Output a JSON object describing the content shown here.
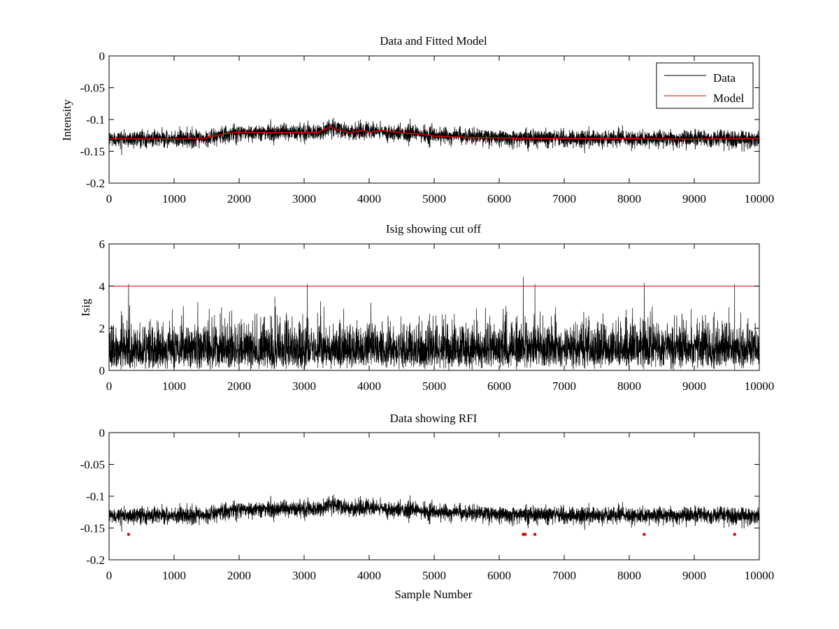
{
  "figure": {
    "background": "#ffffff"
  },
  "chart_data": [
    {
      "type": "line",
      "title": "Data and Fitted Model",
      "xlabel": "",
      "ylabel": "Intensity",
      "xlim": [
        0,
        10000
      ],
      "ylim": [
        -0.2,
        0
      ],
      "xticks": [
        0,
        1000,
        2000,
        3000,
        4000,
        5000,
        6000,
        7000,
        8000,
        9000,
        10000
      ],
      "xtick_labels": [
        "0",
        "1000",
        "2000",
        "3000",
        "4000",
        "5000",
        "6000",
        "7000",
        "8000",
        "9000",
        "10000"
      ],
      "yticks": [
        0,
        -0.05,
        -0.1,
        -0.15,
        -0.2
      ],
      "ytick_labels": [
        "0",
        "-0.05",
        "-0.1",
        "-0.15",
        "-0.2"
      ],
      "legend": {
        "position": "top-right",
        "entries": [
          "Data",
          "Model"
        ]
      },
      "series": [
        {
          "name": "Data",
          "color": "#000000",
          "description": "noisy sample trace, about 10000 samples, peak-to-peak spread about 0.03",
          "n_samples": 10000,
          "noise_halfwidth": 0.016,
          "baseline": {
            "x": [
              0,
              1000,
              1500,
              1800,
              2000,
              3000,
              3300,
              3400,
              3700,
              4000,
              4200,
              4700,
              5000,
              6000,
              7000,
              8000,
              9000,
              10000
            ],
            "y": [
              -0.13,
              -0.13,
              -0.13,
              -0.123,
              -0.12,
              -0.12,
              -0.12,
              -0.112,
              -0.12,
              -0.117,
              -0.12,
              -0.122,
              -0.125,
              -0.128,
              -0.13,
              -0.13,
              -0.13,
              -0.13
            ]
          }
        },
        {
          "name": "Model",
          "color": "#e00000",
          "x": [
            0,
            1000,
            1500,
            1800,
            2000,
            2500,
            3000,
            3200,
            3400,
            3550,
            3700,
            3900,
            4000,
            4200,
            4500,
            4800,
            5000,
            5500,
            6000,
            6500,
            7000,
            8000,
            9000,
            10000
          ],
          "y": [
            -0.13,
            -0.131,
            -0.129,
            -0.122,
            -0.12,
            -0.121,
            -0.12,
            -0.121,
            -0.112,
            -0.117,
            -0.121,
            -0.117,
            -0.12,
            -0.117,
            -0.121,
            -0.123,
            -0.126,
            -0.128,
            -0.129,
            -0.13,
            -0.13,
            -0.13,
            -0.131,
            -0.13
          ]
        }
      ]
    },
    {
      "type": "line",
      "title": "Isig showing cut off",
      "xlabel": "",
      "ylabel": "Isig",
      "xlim": [
        0,
        10000
      ],
      "ylim": [
        0,
        6
      ],
      "xticks": [
        0,
        1000,
        2000,
        3000,
        4000,
        5000,
        6000,
        7000,
        8000,
        9000,
        10000
      ],
      "xtick_labels": [
        "0",
        "1000",
        "2000",
        "3000",
        "4000",
        "5000",
        "6000",
        "7000",
        "8000",
        "9000",
        "10000"
      ],
      "yticks": [
        0,
        2,
        4,
        6
      ],
      "ytick_labels": [
        "0",
        "2",
        "4",
        "6"
      ],
      "series": [
        {
          "name": "Isig",
          "color": "#000000",
          "description": "absolute normalized deviation per sample, mostly 0 to 3, with spikes above the cut off",
          "n_samples": 10000,
          "spikes": [
            {
              "x": 300,
              "y": 4.1
            },
            {
              "x": 2550,
              "y": 3.5
            },
            {
              "x": 3050,
              "y": 4.1
            },
            {
              "x": 6370,
              "y": 4.45
            },
            {
              "x": 6550,
              "y": 4.1
            },
            {
              "x": 8230,
              "y": 4.15
            },
            {
              "x": 9620,
              "y": 4.1
            }
          ]
        },
        {
          "name": "Cut off",
          "color": "#e00000",
          "x": [
            0,
            10000
          ],
          "y": [
            4,
            4
          ]
        }
      ]
    },
    {
      "type": "line",
      "title": "Data showing RFI",
      "xlabel": "Sample Number",
      "ylabel": "",
      "xlim": [
        0,
        10000
      ],
      "ylim": [
        -0.2,
        0
      ],
      "xticks": [
        0,
        1000,
        2000,
        3000,
        4000,
        5000,
        6000,
        7000,
        8000,
        9000,
        10000
      ],
      "xtick_labels": [
        "0",
        "1000",
        "2000",
        "3000",
        "4000",
        "5000",
        "6000",
        "7000",
        "8000",
        "9000",
        "10000"
      ],
      "yticks": [
        0,
        -0.05,
        -0.1,
        -0.15,
        -0.2
      ],
      "ytick_labels": [
        "0",
        "-0.05",
        "-0.1",
        "-0.15",
        "-0.2"
      ],
      "series": [
        {
          "name": "Data",
          "color": "#000000",
          "n_samples": 10000,
          "noise_halfwidth": 0.016,
          "baseline": {
            "x": [
              0,
              1000,
              1500,
              1800,
              2000,
              3000,
              3300,
              3400,
              3700,
              4000,
              4200,
              4700,
              5000,
              6000,
              7000,
              8000,
              9000,
              10000
            ],
            "y": [
              -0.13,
              -0.13,
              -0.13,
              -0.123,
              -0.12,
              -0.12,
              -0.12,
              -0.112,
              -0.12,
              -0.117,
              -0.12,
              -0.122,
              -0.125,
              -0.128,
              -0.13,
              -0.13,
              -0.13,
              -0.13
            ]
          }
        },
        {
          "name": "RFI",
          "color": "#e00000",
          "marker": "dot",
          "x": [
            300,
            6370,
            6400,
            6550,
            8230,
            9620
          ],
          "y": [
            -0.16,
            -0.16,
            -0.16,
            -0.16,
            -0.16,
            -0.16
          ]
        }
      ]
    }
  ]
}
